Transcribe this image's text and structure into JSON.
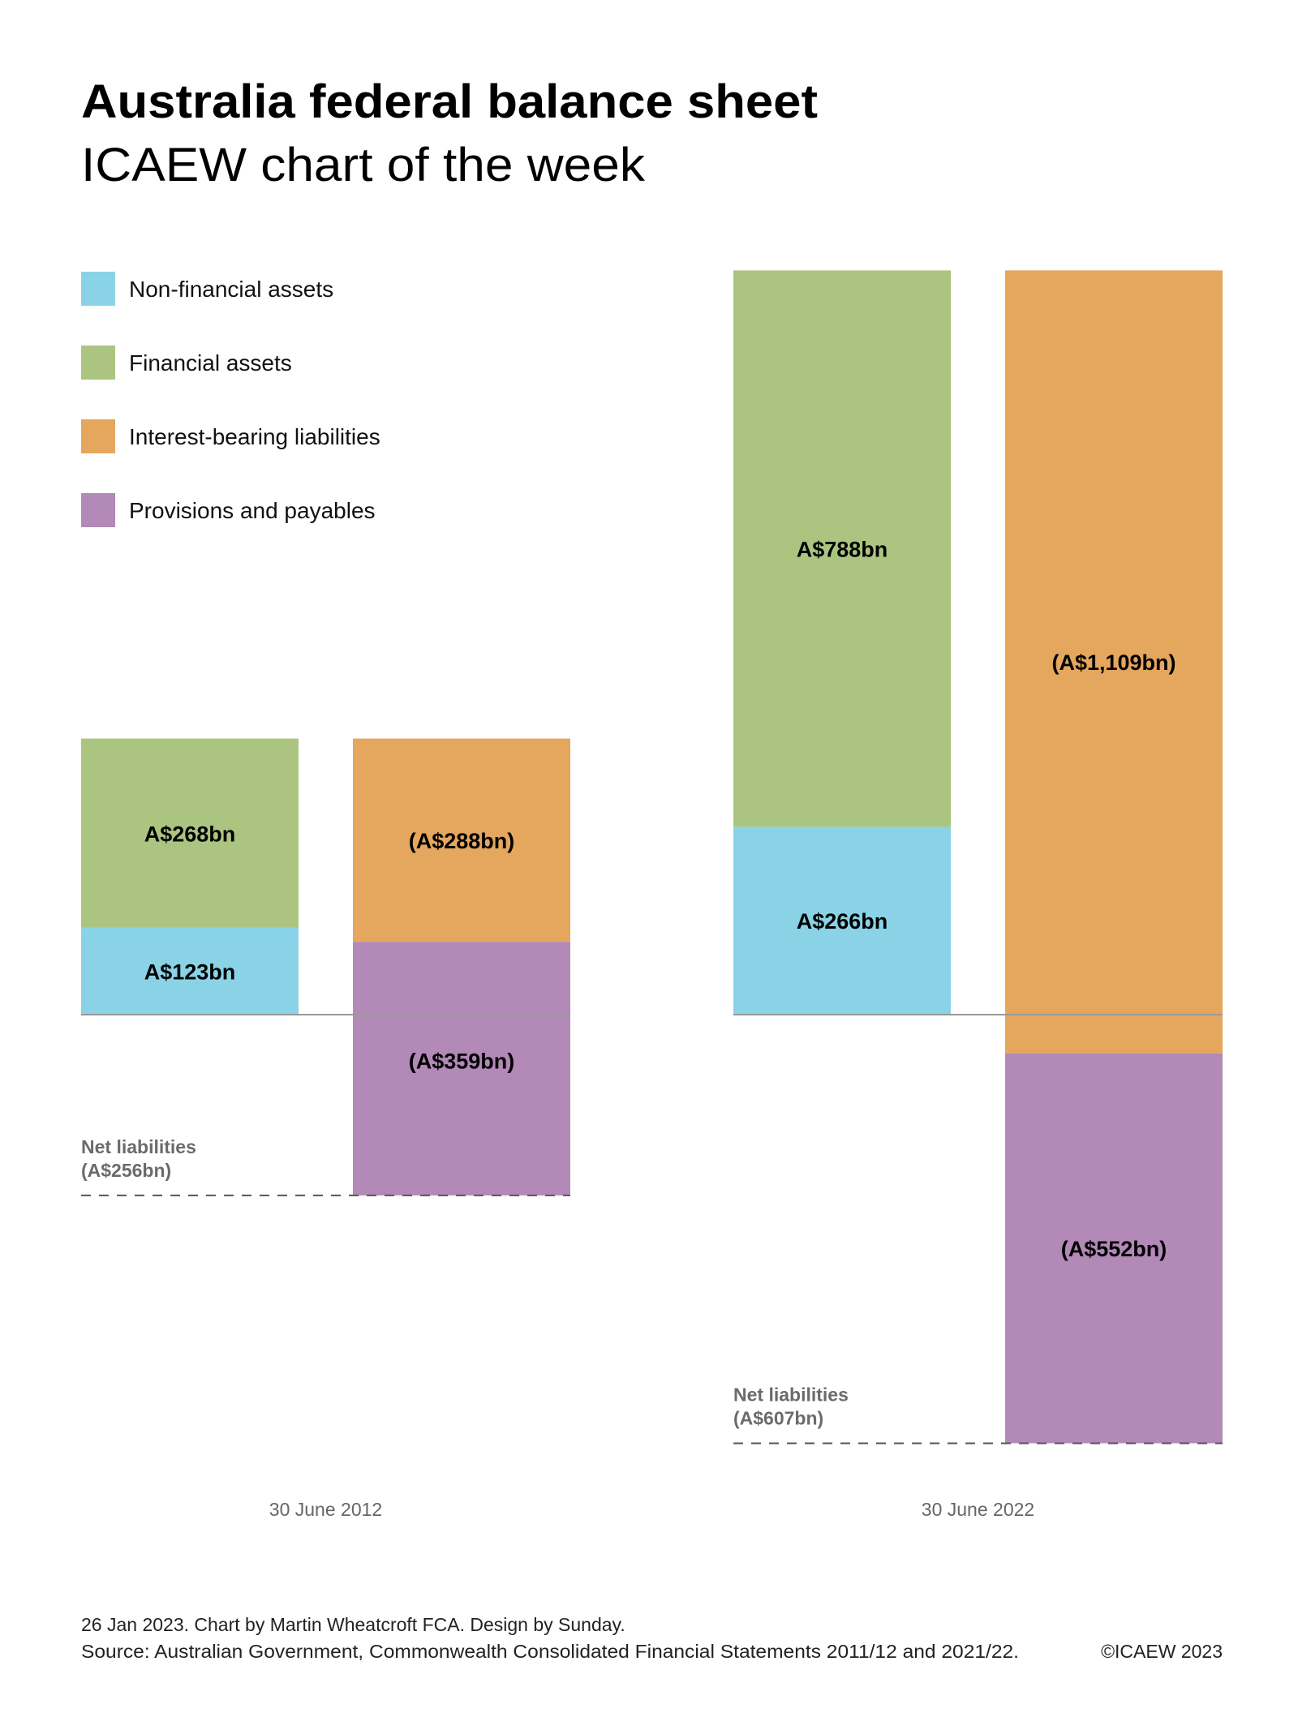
{
  "title": "Australia federal balance sheet",
  "subtitle": "ICAEW chart of the week",
  "legend": [
    {
      "label": "Non-financial assets",
      "color": "#8ad3e6"
    },
    {
      "label": "Financial assets",
      "color": "#abc581"
    },
    {
      "label": "Interest-bearing liabilities",
      "color": "#e5a65e"
    },
    {
      "label": "Provisions and payables",
      "color": "#b289b7"
    }
  ],
  "footer": {
    "line1": "26 Jan 2023.   Chart by Martin Wheatcroft FCA. Design by Sunday.",
    "line2": "Source: Australian Government, Commonwealth Consolidated Financial Statements 2011/12 and 2021/22.",
    "copyright": "©ICAEW 2023"
  },
  "chart_data": {
    "type": "bar",
    "subtype": "stacked balance sheet (assets above zero, liabilities hanging from asset total)",
    "units": "A$bn",
    "categories": [
      "30 June 2012",
      "30 June 2022"
    ],
    "groups": [
      {
        "date": "30 June 2012",
        "assets": [
          {
            "name": "Non-financial assets",
            "value": 123,
            "label": "A$123bn"
          },
          {
            "name": "Financial assets",
            "value": 268,
            "label": "A$268bn"
          }
        ],
        "liabilities": [
          {
            "name": "Interest-bearing liabilities",
            "value": 288,
            "label": "(A$288bn)"
          },
          {
            "name": "Provisions and payables",
            "value": 359,
            "label": "(A$359bn)"
          }
        ],
        "net": {
          "title": "Net liabilities",
          "value": -256,
          "label": "(A$256bn)"
        }
      },
      {
        "date": "30 June 2022",
        "assets": [
          {
            "name": "Non-financial assets",
            "value": 266,
            "label": "A$266bn"
          },
          {
            "name": "Financial assets",
            "value": 788,
            "label": "A$788bn"
          }
        ],
        "liabilities": [
          {
            "name": "Interest-bearing liabilities",
            "value": 1109,
            "label": "(A$1,109bn)"
          },
          {
            "name": "Provisions and payables",
            "value": 552,
            "label": "(A$552bn)"
          }
        ],
        "net": {
          "title": "Net liabilities",
          "value": -607,
          "label": "(A$607bn)"
        }
      }
    ]
  }
}
